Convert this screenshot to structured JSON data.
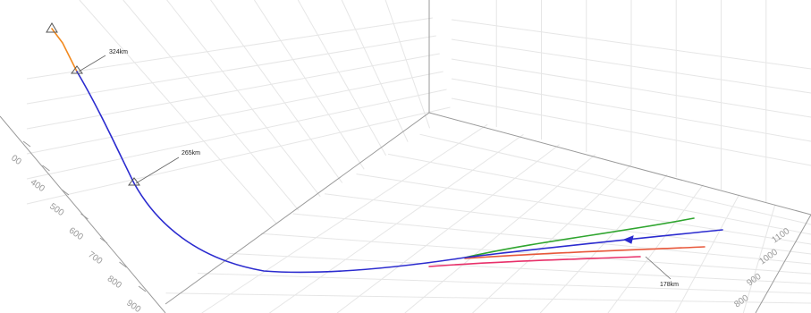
{
  "chart_data": {
    "type": "line",
    "title": "",
    "left_axis": {
      "ticks": [
        "00",
        "400",
        "500",
        "600",
        "700",
        "800",
        "900"
      ]
    },
    "right_axis": {
      "ticks": [
        "1100",
        "1000",
        "900",
        "800"
      ]
    },
    "annotations": [
      {
        "text": "324km"
      },
      {
        "text": "265km"
      },
      {
        "text": "178km"
      }
    ],
    "series": [
      {
        "color": "#f28a1f"
      },
      {
        "color": "#2b2bcf"
      },
      {
        "color": "#2fa52f"
      },
      {
        "color": "#e8306a"
      },
      {
        "color": "#e8573a"
      }
    ],
    "grid": true,
    "legend": "none"
  }
}
